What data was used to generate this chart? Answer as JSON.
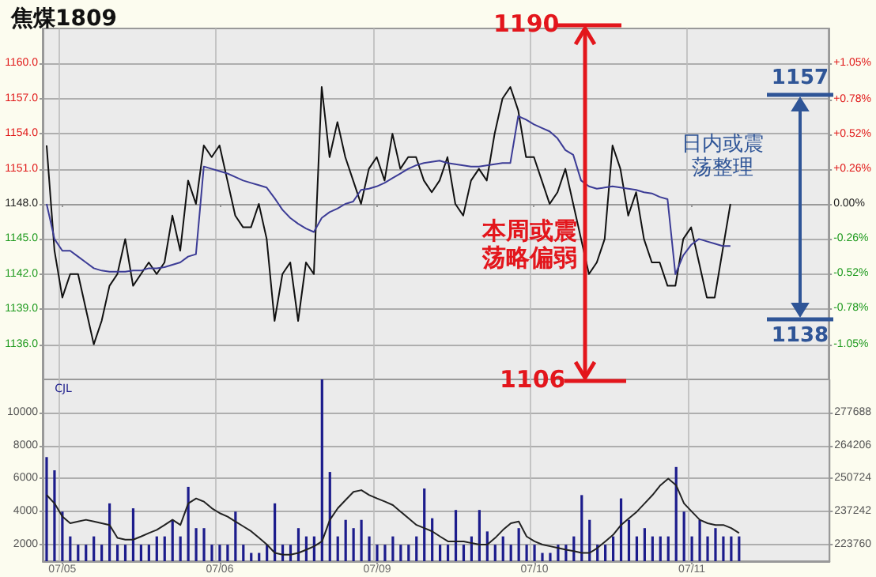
{
  "chart_data": [
    {
      "type": "line",
      "title": "焦煤1809",
      "categories": [
        null,
        null,
        null,
        null,
        null,
        null,
        null,
        null,
        null,
        null,
        null,
        null,
        null,
        null,
        null,
        null,
        null,
        null,
        null,
        null,
        null,
        null,
        null,
        null,
        null,
        null,
        null,
        null,
        null,
        null,
        null,
        null,
        null,
        null,
        null,
        null,
        null,
        null,
        null,
        null,
        null,
        null,
        null,
        null,
        null,
        null,
        null,
        null,
        null,
        null,
        null,
        null,
        null,
        null,
        null,
        null,
        null,
        null,
        null,
        null,
        null,
        null,
        null,
        null,
        null,
        null,
        null,
        null,
        null,
        null,
        null,
        null,
        null,
        null,
        null,
        null,
        null,
        null,
        null,
        null,
        null,
        null,
        null,
        null,
        null,
        null,
        null,
        null,
        null,
        null,
        null,
        null,
        null,
        null,
        null,
        null,
        null,
        null,
        null,
        null
      ],
      "series": [
        {
          "color": "#111111",
          "values": [
            1153,
            1144,
            1140,
            1142,
            1142,
            1139,
            1136,
            1138,
            1141,
            1142,
            1145,
            1141,
            1142,
            1143,
            1142,
            1143,
            1147,
            1144,
            1150,
            1148,
            1153,
            1152,
            1153,
            1150,
            1147,
            1146,
            1146,
            1148,
            1145,
            1138,
            1142,
            1143,
            1138,
            1143,
            1142,
            1158,
            1152,
            1155,
            1152,
            1150,
            1148,
            1151,
            1152,
            1150,
            1154,
            1151,
            1152,
            1152,
            1150,
            1149,
            1150,
            1152,
            1148,
            1147,
            1150,
            1151,
            1150,
            1154,
            1157,
            1158,
            1156,
            1152,
            1152,
            1150,
            1148,
            1149,
            1151,
            1148,
            1145,
            1142,
            1143,
            1145,
            1153,
            1151,
            1147,
            1149,
            1145,
            1143,
            1143,
            1141,
            1141,
            1145,
            1146,
            1143,
            1140,
            1140,
            1144,
            1148,
            null,
            null,
            null,
            null,
            null,
            null,
            null,
            null,
            null,
            null,
            null,
            null
          ]
        },
        {
          "color": "#3c3c96",
          "values": [
            1148,
            1145,
            1144,
            1144,
            1143.5,
            1143,
            1142.5,
            1142.3,
            1142.2,
            1142.2,
            1142.2,
            1142.3,
            1142.3,
            1142.5,
            1142.5,
            1142.6,
            1142.8,
            1143,
            1143.5,
            1143.7,
            1151.2,
            1151,
            1150.8,
            1150.6,
            1150.3,
            1150,
            1149.8,
            1149.6,
            1149.4,
            1148.5,
            1147.5,
            1146.8,
            1146.3,
            1145.9,
            1145.6,
            1146.8,
            1147.3,
            1147.6,
            1148,
            1148.2,
            1149.2,
            1149.3,
            1149.5,
            1149.8,
            1150.2,
            1150.6,
            1151,
            1151.3,
            1151.5,
            1151.6,
            1151.7,
            1151.5,
            1151.4,
            1151.3,
            1151.2,
            1151.2,
            1151.3,
            1151.4,
            1151.5,
            1151.5,
            1155.5,
            1155.2,
            1154.8,
            1154.5,
            1154.2,
            1153.6,
            1152.6,
            1152.2,
            1150,
            1149.5,
            1149.3,
            1149.4,
            1149.5,
            1149.4,
            1149.3,
            1149.2,
            1149,
            1148.9,
            1148.6,
            1148.4,
            1142,
            1143.6,
            1144.5,
            1145,
            1144.8,
            1144.6,
            1144.4,
            1144.4,
            null,
            null,
            null,
            null,
            null,
            null,
            null,
            null,
            null,
            null,
            null,
            null
          ]
        }
      ],
      "ylim": [
        1133,
        1163
      ],
      "yticks": [
        {
          "value": 1136,
          "label": "1136.0"
        },
        {
          "value": 1139,
          "label": "1139.0"
        },
        {
          "value": 1142,
          "label": "1142.0"
        },
        {
          "value": 1145,
          "label": "1145.0"
        },
        {
          "value": 1148,
          "label": "1148.0"
        },
        {
          "value": 1151,
          "label": "1151.0"
        },
        {
          "value": 1154,
          "label": "1154.0"
        },
        {
          "value": 1157,
          "label": "1157.0"
        },
        {
          "value": 1160,
          "label": "1160.0"
        }
      ],
      "y2lim": [
        -1.31,
        1.31
      ],
      "y2ticks": [
        {
          "value": -1.05,
          "label": "-1.05%"
        },
        {
          "value": -0.78,
          "label": "-0.78%"
        },
        {
          "value": -0.52,
          "label": "-0.52%"
        },
        {
          "value": -0.26,
          "label": "-0.26%"
        },
        {
          "value": 0,
          "label": "0.00%"
        },
        {
          "value": 0.26,
          "label": "+0.26%"
        },
        {
          "value": 0.52,
          "label": "+0.52%"
        },
        {
          "value": 0.78,
          "label": "+0.78%"
        },
        {
          "value": 1.05,
          "label": "+1.05%"
        }
      ],
      "grid": true,
      "annotations": [
        "1190",
        "1106",
        "本周或震荡略偏弱",
        "1157",
        "1138",
        "日内或震荡整理"
      ]
    },
    {
      "type": "bar",
      "categories": [
        null,
        null,
        "07/05",
        null,
        null,
        null,
        null,
        null,
        null,
        null,
        null,
        null,
        null,
        null,
        null,
        null,
        null,
        null,
        null,
        null,
        null,
        null,
        "07/06",
        null,
        null,
        null,
        null,
        null,
        null,
        null,
        null,
        null,
        null,
        null,
        null,
        null,
        null,
        null,
        null,
        null,
        null,
        null,
        "07/09",
        null,
        null,
        null,
        null,
        null,
        null,
        null,
        null,
        null,
        null,
        null,
        null,
        null,
        null,
        null,
        null,
        null,
        null,
        null,
        "07/10",
        null,
        null,
        null,
        null,
        null,
        null,
        null,
        null,
        null,
        null,
        null,
        null,
        null,
        null,
        null,
        null,
        null,
        null,
        null,
        "07/11",
        null,
        null,
        null,
        null,
        null,
        null,
        null,
        null,
        null,
        null,
        null,
        null,
        null,
        null,
        null,
        null,
        null
      ],
      "series": [
        {
          "color": "#1c1c8c",
          "values": [
            7300,
            6500,
            4000,
            2500,
            2000,
            2000,
            2500,
            2000,
            4500,
            2000,
            2000,
            4200,
            2000,
            2000,
            2500,
            2500,
            3500,
            2500,
            5500,
            3000,
            3000,
            2000,
            2000,
            2000,
            4000,
            2000,
            1500,
            1500,
            2000,
            4500,
            2000,
            2000,
            3000,
            2500,
            2500,
            12000,
            6400,
            2500,
            3500,
            3000,
            3500,
            2500,
            2000,
            2000,
            2500,
            2000,
            2000,
            2500,
            5400,
            3600,
            2000,
            2000,
            4100,
            2000,
            2500,
            4100,
            2800,
            2000,
            2500,
            2000,
            3000,
            2000,
            2000,
            1500,
            1500,
            2000,
            2000,
            2500,
            5000,
            3500,
            2000,
            2000,
            2500,
            4800,
            3500,
            2500,
            3000,
            2500,
            2500,
            2500,
            6700,
            4000,
            2500,
            3500,
            2500,
            3000,
            2500,
            2500,
            2500,
            null,
            null,
            null,
            null,
            null,
            null,
            null,
            null,
            null,
            null,
            null
          ]
        },
        {
          "type": "line",
          "axis": "y2",
          "color": "#222222",
          "values": [
            244000,
            240600,
            235200,
            232500,
            233200,
            233900,
            233200,
            232500,
            231800,
            226500,
            225800,
            225800,
            227100,
            228500,
            229800,
            231800,
            233900,
            231800,
            240600,
            242600,
            241300,
            238600,
            236600,
            235200,
            233200,
            231200,
            229200,
            226500,
            223800,
            220400,
            219700,
            219700,
            220400,
            221700,
            223100,
            225100,
            233900,
            238600,
            242000,
            245300,
            246000,
            244000,
            242600,
            241300,
            239900,
            237200,
            234500,
            231800,
            230500,
            229200,
            227100,
            225100,
            225100,
            225100,
            224400,
            223800,
            223800,
            226500,
            229800,
            232500,
            233200,
            227100,
            225100,
            223800,
            223100,
            222400,
            221700,
            221100,
            220400,
            220400,
            222400,
            225100,
            227800,
            231800,
            234500,
            237200,
            240600,
            244000,
            248000,
            250700,
            248000,
            240600,
            237200,
            233900,
            232500,
            231800,
            231800,
            230500,
            228500,
            null,
            null,
            null,
            null,
            null,
            null,
            null,
            null,
            null,
            null,
            null
          ]
        }
      ],
      "ylim": [
        1000,
        12000
      ],
      "yticks": [
        2000,
        4000,
        6000,
        8000,
        10000
      ],
      "y2lim": [
        217019,
        291170
      ],
      "y2ticks": [
        223760,
        237242,
        250724,
        264206,
        277688
      ],
      "grid": true,
      "annotations": [
        "CJL"
      ]
    }
  ]
}
